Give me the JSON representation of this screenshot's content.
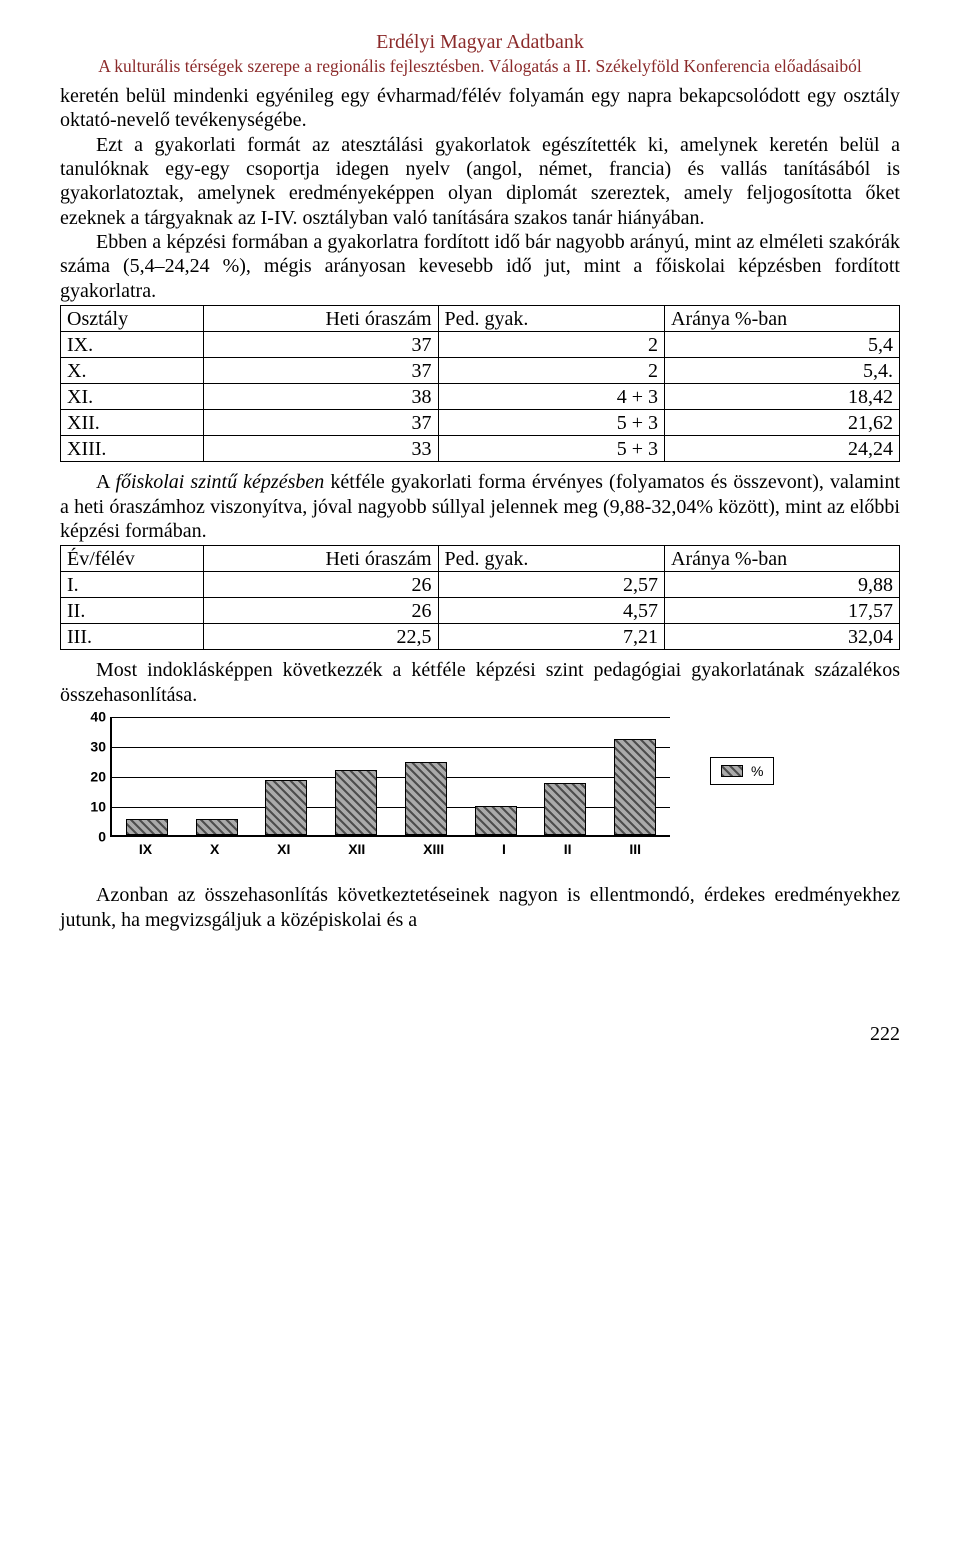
{
  "header": {
    "title": "Erdélyi Magyar Adatbank",
    "subtitle": "A kulturális térségek szerepe a regionális fejlesztésben. Válogatás a II. Székelyföld Konferencia előadásaiból"
  },
  "p1": "keretén belül mindenki egyénileg egy évharmad/félév folyamán egy napra bekapcsolódott egy osztály oktató-nevelő tevékenységébe.",
  "p2": "Ezt a gyakorlati formát az atesztálási gyakorlatok egészítették ki, amelynek keretén belül a tanulóknak egy-egy csoportja idegen nyelv (angol, német, francia) és vallás tanításából is gyakorlatoztak, amelynek eredményeképpen olyan diplomát szereztek, amely feljogosította őket ezeknek a tárgyaknak az I-IV. osztályban való tanítására szakos tanár hiányában.",
  "p3": "Ebben a képzési formában a gyakorlatra fordított idő bár nagyobb arányú, mint az elméleti szakórák száma (5,4–24,24 %), mégis arányosan kevesebb idő jut, mint a főiskolai képzésben fordított gyakorlatra.",
  "table1": {
    "headers": [
      "Osztály",
      "Heti óraszám",
      "Ped. gyak.",
      "Aránya %-ban"
    ],
    "rows": [
      [
        "IX.",
        "37",
        "2",
        "5,4"
      ],
      [
        "X.",
        "37",
        "2",
        "5,4."
      ],
      [
        "XI.",
        "38",
        "4 + 3",
        "18,42"
      ],
      [
        "XII.",
        "37",
        "5 + 3",
        "21,62"
      ],
      [
        "XIII.",
        "33",
        "5 + 3",
        "24,24"
      ]
    ]
  },
  "p4a": "A ",
  "p4b": "főiskolai szintű képzésben",
  "p4c": " kétféle gyakorlati forma érvényes (folyamatos és összevont), valamint a heti óraszámhoz viszonyítva, jóval nagyobb súllyal jelennek meg (9,88-32,04% között), mint az előbbi képzési formában.",
  "table2": {
    "headers": [
      "Év/félév",
      "Heti óraszám",
      "Ped. gyak.",
      "Aránya %-ban"
    ],
    "rows": [
      [
        "I.",
        "26",
        "2,57",
        "9,88"
      ],
      [
        "II.",
        "26",
        "4,57",
        "17,57"
      ],
      [
        "III.",
        "22,5",
        "7,21",
        "32,04"
      ]
    ]
  },
  "p5": "Most indoklásképpen következzék a kétféle képzési szint pedagógiai gyakorlatának százalékos összehasonlítása.",
  "chart": {
    "categories": [
      "IX",
      "X",
      "XI",
      "XII",
      "XIII",
      "I",
      "II",
      "III"
    ],
    "values": [
      5.4,
      5.4,
      18.42,
      21.62,
      24.24,
      9.88,
      17.57,
      32.04
    ],
    "ymax": 40,
    "yticks": [
      0,
      10,
      20,
      30,
      40
    ],
    "legend": "%"
  },
  "p6": "Azonban az összehasonlítás következtetéseinek nagyon is ellentmondó, érdekes eredményekhez jutunk, ha megvizsgáljuk a középiskolai és a",
  "page_number": "222"
}
